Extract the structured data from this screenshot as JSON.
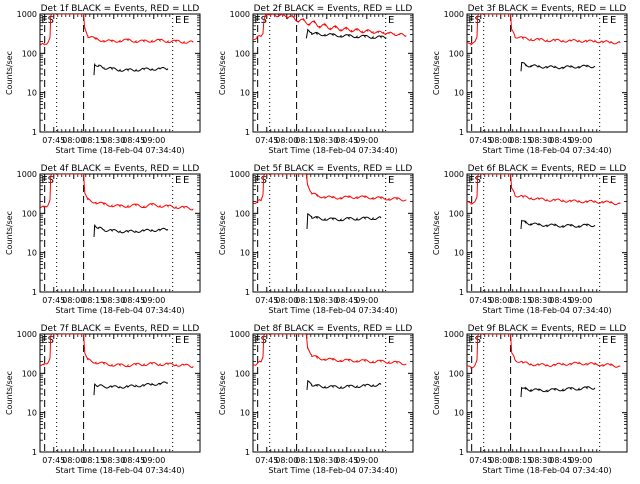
{
  "figure": {
    "background": "#ffffff",
    "axis_color": "#000000",
    "events_color": "#000000",
    "lld_color": "#ff0000"
  },
  "chart_data": [
    {
      "type": "line",
      "title": "Det 1f BLACK = Events, RED = LLD",
      "xlabel": "Start Time (18-Feb-04 07:34:40)",
      "ylabel": "Counts/sec",
      "xticks": [
        "07:45",
        "08:00",
        "08:15",
        "08:30",
        "08:45",
        "09:00"
      ],
      "yticks": [
        "1",
        "10",
        "100",
        "1000"
      ],
      "yscale": "log",
      "ylim": [
        1,
        1000
      ],
      "markers": [
        "E",
        "S",
        "E",
        "E"
      ],
      "series": [
        {
          "x": [
            0,
            3,
            6,
            7.5,
            8,
            9,
            9.5,
            10,
            32.7,
            33.5,
            36,
            42,
            48,
            54,
            60,
            66,
            72,
            78,
            84,
            90,
            96,
            102,
            108,
            115
          ],
          "values": [
            160,
            170,
            190,
            250,
            900,
            1000,
            1000,
            1000,
            1000,
            420,
            270,
            230,
            210,
            200,
            210,
            215,
            205,
            200,
            210,
            210,
            205,
            200,
            195,
            190
          ]
        },
        {
          "x": [
            40.5,
            41,
            44,
            48,
            54,
            60,
            66,
            72,
            78,
            84,
            90,
            96
          ],
          "values": [
            28,
            55,
            47,
            43,
            40,
            38,
            37,
            38,
            39,
            40,
            40,
            41
          ]
        }
      ]
    },
    {
      "type": "line",
      "title": "Det 2f BLACK = Events, RED = LLD",
      "xlabel": "Start Time (18-Feb-04 07:34:40)",
      "ylabel": "Counts/sec",
      "xticks": [
        "07:45",
        "08:00",
        "08:15",
        "08:30",
        "08:45",
        "09:00"
      ],
      "yticks": [
        "1",
        "10",
        "100",
        "1000"
      ],
      "yscale": "log",
      "ylim": [
        1,
        1000
      ],
      "markers": [
        "E",
        "S",
        "E"
      ],
      "series": [
        {
          "x": [
            0,
            3,
            6,
            7.5,
            8,
            9,
            10,
            12,
            15,
            18,
            22,
            26,
            30,
            34,
            38,
            42,
            46,
            50,
            54,
            58,
            62,
            66,
            70,
            74,
            78,
            82,
            86,
            90,
            94,
            98,
            102,
            106,
            110,
            115
          ],
          "values": [
            240,
            250,
            270,
            320,
            600,
            900,
            1000,
            950,
            1000,
            850,
            1000,
            800,
            850,
            650,
            700,
            550,
            620,
            480,
            520,
            430,
            460,
            400,
            420,
            380,
            390,
            360,
            370,
            350,
            340,
            340,
            320,
            310,
            300,
            280
          ]
        },
        {
          "x": [
            40,
            41,
            44,
            48,
            54,
            60,
            66,
            72,
            78,
            84,
            90,
            96,
            100
          ],
          "values": [
            240,
            370,
            330,
            310,
            300,
            290,
            280,
            275,
            270,
            265,
            260,
            255,
            250
          ]
        }
      ]
    },
    {
      "type": "line",
      "title": "Det 3f BLACK = Events, RED = LLD",
      "xlabel": "Start Time (18-Feb-04 07:34:40)",
      "ylabel": "Counts/sec",
      "xticks": [
        "07:45",
        "08:00",
        "08:15",
        "08:30",
        "08:45",
        "09:00"
      ],
      "yticks": [
        "1",
        "10",
        "100",
        "1000"
      ],
      "yscale": "log",
      "ylim": [
        1,
        1000
      ],
      "markers": [
        "E",
        "S",
        "E",
        "E"
      ],
      "series": [
        {
          "x": [
            0,
            3,
            6,
            7.5,
            8,
            9,
            10,
            32.7,
            33.5,
            36,
            42,
            48,
            54,
            60,
            66,
            72,
            78,
            84,
            90,
            96,
            102,
            108,
            115
          ],
          "values": [
            170,
            180,
            200,
            260,
            900,
            1000,
            1000,
            1000,
            380,
            270,
            240,
            230,
            220,
            215,
            210,
            210,
            205,
            210,
            200,
            205,
            195,
            190,
            185
          ]
        },
        {
          "x": [
            40.5,
            41,
            44,
            48,
            54,
            60,
            66,
            72,
            78,
            84,
            90,
            96
          ],
          "values": [
            35,
            60,
            50,
            48,
            46,
            45,
            44,
            44,
            45,
            46,
            46,
            47
          ]
        }
      ]
    },
    {
      "type": "line",
      "title": "Det 4f BLACK = Events, RED = LLD",
      "xlabel": "Start Time (18-Feb-04 07:34:40)",
      "ylabel": "Counts/sec",
      "xticks": [
        "07:45",
        "08:00",
        "08:15",
        "08:30",
        "08:45",
        "09:00"
      ],
      "yticks": [
        "1",
        "10",
        "100",
        "1000"
      ],
      "yscale": "log",
      "ylim": [
        1,
        1000
      ],
      "markers": [
        "E",
        "S",
        "E",
        "E"
      ],
      "series": [
        {
          "x": [
            0,
            3,
            6,
            7.5,
            8,
            9,
            10,
            32.7,
            33.5,
            36,
            42,
            48,
            54,
            60,
            66,
            72,
            78,
            84,
            90,
            96,
            102,
            108,
            115
          ],
          "values": [
            140,
            145,
            160,
            220,
            900,
            1000,
            1000,
            1000,
            360,
            220,
            190,
            170,
            160,
            150,
            155,
            160,
            150,
            165,
            155,
            150,
            145,
            140,
            130
          ]
        },
        {
          "x": [
            40.5,
            41,
            44,
            48,
            54,
            60,
            66,
            72,
            78,
            84,
            90,
            96
          ],
          "values": [
            25,
            52,
            42,
            38,
            36,
            35,
            34,
            35,
            36,
            37,
            38,
            39
          ]
        }
      ]
    },
    {
      "type": "line",
      "title": "Det 5f BLACK = Events, RED = LLD",
      "xlabel": "Start Time (18-Feb-04 07:34:40)",
      "ylabel": "Counts/sec",
      "xticks": [
        "07:45",
        "08:00",
        "08:15",
        "08:30",
        "08:45",
        "09:00"
      ],
      "yticks": [
        "1",
        "10",
        "100",
        "1000"
      ],
      "yscale": "log",
      "ylim": [
        1,
        1000
      ],
      "markers": [
        "E",
        "S",
        "E"
      ],
      "series": [
        {
          "x": [
            0,
            3,
            6,
            7.5,
            8,
            9,
            10,
            12,
            16,
            40,
            41,
            44,
            48,
            54,
            60,
            66,
            72,
            78,
            84,
            90,
            96,
            102,
            108,
            115
          ],
          "values": [
            190,
            195,
            210,
            300,
            900,
            1000,
            1000,
            1000,
            1000,
            1000,
            500,
            330,
            280,
            260,
            250,
            250,
            255,
            260,
            255,
            250,
            240,
            235,
            230,
            220
          ]
        },
        {
          "x": [
            40.5,
            41,
            44,
            48,
            54,
            60,
            66,
            72,
            78,
            84,
            90,
            96
          ],
          "values": [
            40,
            90,
            82,
            76,
            72,
            70,
            70,
            72,
            73,
            74,
            75,
            76
          ]
        }
      ]
    },
    {
      "type": "line",
      "title": "Det 6f BLACK = Events, RED = LLD",
      "xlabel": "Start Time (18-Feb-04 07:34:40)",
      "ylabel": "Counts/sec",
      "xticks": [
        "07:45",
        "08:00",
        "08:15",
        "08:30",
        "08:45",
        "09:00"
      ],
      "yticks": [
        "1",
        "10",
        "100",
        "1000"
      ],
      "yscale": "log",
      "ylim": [
        1,
        1000
      ],
      "markers": [
        "E",
        "S",
        "E",
        "E"
      ],
      "series": [
        {
          "x": [
            0,
            3,
            6,
            7.5,
            8,
            9,
            10,
            32.7,
            33.5,
            36,
            42,
            48,
            54,
            60,
            66,
            72,
            78,
            84,
            90,
            96,
            102,
            108,
            115
          ],
          "values": [
            180,
            185,
            200,
            260,
            900,
            1000,
            1000,
            1000,
            420,
            290,
            260,
            245,
            230,
            220,
            215,
            210,
            205,
            200,
            200,
            195,
            195,
            185,
            175
          ]
        },
        {
          "x": [
            40.5,
            41,
            44,
            48,
            54,
            60,
            66,
            72,
            78,
            84,
            90,
            96
          ],
          "values": [
            40,
            68,
            58,
            54,
            51,
            50,
            49,
            48,
            48,
            48,
            49,
            50
          ]
        }
      ]
    },
    {
      "type": "line",
      "title": "Det 7f BLACK = Events, RED = LLD",
      "xlabel": "Start Time (18-Feb-04 07:34:40)",
      "ylabel": "Counts/sec",
      "xticks": [
        "07:45",
        "08:00",
        "08:15",
        "08:30",
        "08:45",
        "09:00"
      ],
      "yticks": [
        "1",
        "10",
        "100",
        "1000"
      ],
      "yscale": "log",
      "ylim": [
        1,
        1000
      ],
      "markers": [
        "E",
        "S",
        "E",
        "E"
      ],
      "series": [
        {
          "x": [
            0,
            3,
            6,
            7.5,
            8,
            9,
            10,
            32.7,
            33.5,
            36,
            42,
            48,
            54,
            60,
            66,
            72,
            78,
            84,
            90,
            96,
            102,
            108,
            115
          ],
          "values": [
            160,
            165,
            185,
            240,
            900,
            1000,
            1000,
            1000,
            360,
            220,
            190,
            175,
            165,
            160,
            160,
            165,
            170,
            175,
            170,
            170,
            165,
            160,
            150
          ]
        },
        {
          "x": [
            40.5,
            41,
            44,
            48,
            54,
            60,
            66,
            72,
            78,
            84,
            90,
            96
          ],
          "values": [
            28,
            55,
            48,
            46,
            45,
            45,
            46,
            48,
            50,
            52,
            55,
            57
          ]
        }
      ]
    },
    {
      "type": "line",
      "title": "Det 8f BLACK = Events, RED = LLD",
      "xlabel": "Start Time (18-Feb-04 07:34:40)",
      "ylabel": "Counts/sec",
      "xticks": [
        "07:45",
        "08:00",
        "08:15",
        "08:30",
        "08:45",
        "09:00"
      ],
      "yticks": [
        "1",
        "10",
        "100",
        "1000"
      ],
      "yscale": "log",
      "ylim": [
        1,
        1000
      ],
      "markers": [
        "E",
        "S",
        "E"
      ],
      "series": [
        {
          "x": [
            0,
            3,
            6,
            7.5,
            8,
            9,
            10,
            12,
            16,
            40,
            41,
            44,
            48,
            54,
            60,
            66,
            72,
            78,
            84,
            90,
            96,
            102,
            108,
            115
          ],
          "values": [
            170,
            175,
            195,
            260,
            900,
            1000,
            1000,
            1000,
            1000,
            1000,
            420,
            290,
            250,
            230,
            220,
            215,
            210,
            210,
            205,
            200,
            200,
            195,
            185,
            175
          ]
        },
        {
          "x": [
            40.5,
            41,
            44,
            48,
            54,
            60,
            66,
            72,
            78,
            84,
            90,
            96
          ],
          "values": [
            38,
            60,
            52,
            48,
            46,
            45,
            45,
            46,
            47,
            48,
            50,
            52
          ]
        }
      ]
    },
    {
      "type": "line",
      "title": "Det 9f BLACK = Events, RED = LLD",
      "xlabel": "Start Time (18-Feb-04 07:34:40)",
      "ylabel": "Counts/sec",
      "xticks": [
        "07:45",
        "08:00",
        "08:15",
        "08:30",
        "08:45",
        "09:00"
      ],
      "yticks": [
        "1",
        "10",
        "100",
        "1000"
      ],
      "yscale": "log",
      "ylim": [
        1,
        1000
      ],
      "markers": [
        "E",
        "S",
        "E",
        "E"
      ],
      "series": [
        {
          "x": [
            0,
            3,
            6,
            7.5,
            8,
            9,
            10,
            32.7,
            33.5,
            36,
            42,
            48,
            54,
            60,
            66,
            72,
            78,
            84,
            90,
            96,
            102,
            108,
            115
          ],
          "values": [
            140,
            145,
            160,
            220,
            900,
            1000,
            1000,
            1000,
            330,
            220,
            185,
            170,
            165,
            160,
            165,
            170,
            175,
            180,
            175,
            170,
            165,
            160,
            150
          ]
        },
        {
          "x": [
            40.5,
            41,
            44,
            48,
            54,
            60,
            66,
            72,
            78,
            84,
            90,
            96
          ],
          "values": [
            25,
            45,
            40,
            38,
            37,
            37,
            38,
            39,
            40,
            41,
            42,
            43
          ]
        }
      ]
    }
  ]
}
